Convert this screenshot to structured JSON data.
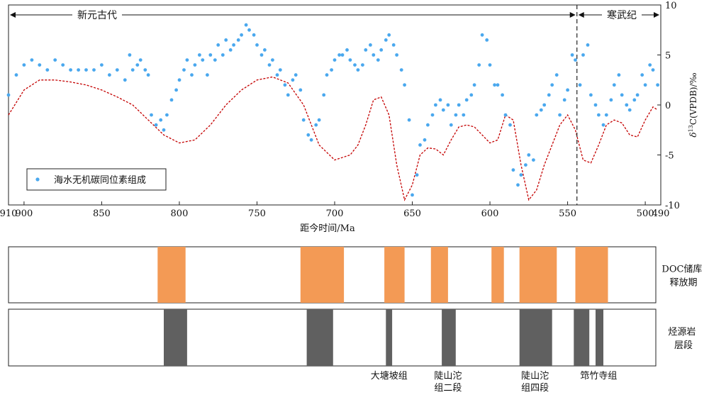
{
  "chart_data": [
    {
      "type": "scatter",
      "title": "",
      "xlabel": "距今时间/Ma",
      "ylabel": "δ13C(VPDB)/‰",
      "ylabel_parts": {
        "delta": "δ",
        "sup": "13",
        "rest": "C(VPDB)/‰"
      },
      "xlim": [
        910,
        490
      ],
      "ylim": [
        -10,
        10
      ],
      "x_reversed": true,
      "xticks": [
        910,
        900,
        850,
        800,
        750,
        700,
        650,
        600,
        550,
        500,
        490
      ],
      "yticks": [
        10,
        5,
        0,
        -5,
        -10
      ],
      "boundary_ma": 544,
      "era_labels": {
        "left": "新元古代",
        "right": "寒武纪"
      },
      "legend": {
        "label": "海水无机碳同位素组成",
        "position": "bottom-left"
      },
      "colors": {
        "points": "#4aa8ee",
        "trend": "#c40000",
        "boundary": "#333333"
      },
      "series": [
        {
          "name": "海水无机碳同位素组成",
          "kind": "points",
          "x": [
            910,
            905,
            900,
            895,
            890,
            885,
            880,
            875,
            870,
            865,
            860,
            855,
            850,
            845,
            840,
            835,
            832,
            830,
            827,
            825,
            822,
            820,
            818,
            815,
            812,
            810,
            808,
            805,
            802,
            800,
            797,
            795,
            792,
            790,
            787,
            785,
            782,
            780,
            777,
            775,
            772,
            770,
            767,
            765,
            762,
            760,
            757,
            755,
            752,
            750,
            747,
            745,
            742,
            740,
            737,
            735,
            732,
            730,
            727,
            725,
            722,
            720,
            717,
            715,
            712,
            710,
            707,
            705,
            702,
            700,
            697,
            695,
            692,
            690,
            687,
            685,
            682,
            680,
            677,
            675,
            672,
            670,
            667,
            665,
            662,
            660,
            657,
            655,
            652,
            650,
            647,
            645,
            642,
            640,
            637,
            635,
            632,
            630,
            627,
            625,
            622,
            620,
            617,
            615,
            612,
            610,
            607,
            605,
            602,
            600,
            597,
            595,
            592,
            590,
            587,
            585,
            582,
            580,
            577,
            575,
            572,
            570,
            567,
            565,
            562,
            560,
            557,
            555,
            552,
            550,
            547,
            545,
            542,
            540,
            537,
            535,
            532,
            530,
            527,
            525,
            522,
            520,
            517,
            515,
            512,
            510,
            507,
            505,
            502,
            500,
            497,
            495,
            492
          ],
          "y": [
            1,
            3,
            4,
            4.5,
            4,
            3.5,
            4.5,
            4,
            3.5,
            3.5,
            3.5,
            3.5,
            4,
            3,
            3.5,
            2.5,
            5,
            3.5,
            4,
            4.5,
            3.5,
            3,
            -1,
            -2,
            -1.5,
            -2.5,
            -1,
            0.5,
            1.5,
            2.5,
            3.5,
            4.5,
            3,
            4,
            5,
            4.5,
            3,
            5,
            4.5,
            6,
            5,
            6.5,
            5.5,
            6,
            6.5,
            7,
            8,
            7.5,
            7,
            6,
            5,
            5.5,
            4,
            4.5,
            3,
            3.5,
            2,
            1,
            2.5,
            3,
            1.5,
            -1.5,
            -3,
            -3.5,
            -2,
            -1.5,
            1,
            3,
            3.5,
            4.5,
            5,
            5,
            5.5,
            4.5,
            4,
            3.5,
            4,
            5.5,
            6,
            5,
            4.5,
            5.5,
            6.5,
            7,
            6,
            5,
            3.5,
            2,
            -1.5,
            -9,
            -7,
            -4,
            -3.5,
            -2,
            -1,
            0,
            0.5,
            -0.5,
            0,
            -2,
            -1,
            0,
            -1,
            0.5,
            1,
            2,
            4,
            7,
            6.5,
            4,
            2,
            2,
            1,
            -1,
            -2,
            -6.5,
            -8,
            -7,
            -6,
            -5,
            -5.5,
            -1,
            -0.5,
            0,
            1,
            2,
            3,
            -1,
            0.5,
            1.5,
            5,
            4.5,
            2,
            5,
            6,
            1,
            0,
            -1,
            -2,
            -1,
            0.5,
            2,
            3,
            1,
            0,
            -0.5,
            0.5,
            1,
            3,
            2,
            4,
            3.5,
            2
          ]
        },
        {
          "name": "",
          "kind": "trend",
          "x": [
            910,
            900,
            890,
            880,
            870,
            860,
            850,
            840,
            830,
            820,
            810,
            800,
            790,
            780,
            770,
            760,
            750,
            740,
            730,
            720,
            710,
            700,
            690,
            685,
            680,
            675,
            670,
            665,
            660,
            655,
            650,
            645,
            640,
            635,
            630,
            625,
            620,
            615,
            610,
            605,
            600,
            595,
            590,
            585,
            580,
            575,
            570,
            565,
            560,
            555,
            550,
            545,
            540,
            535,
            530,
            525,
            520,
            515,
            510,
            505,
            500,
            495,
            492
          ],
          "y": [
            -1,
            1.5,
            2.5,
            2.5,
            2.3,
            2,
            1.5,
            0.8,
            0,
            -1.5,
            -3,
            -3.8,
            -3.5,
            -2,
            0,
            1.5,
            2.5,
            2.8,
            2.2,
            0,
            -4,
            -5.5,
            -5,
            -4,
            -2,
            0.5,
            0.8,
            -1,
            -6,
            -9.5,
            -8,
            -5,
            -4.3,
            -4.4,
            -5,
            -3.5,
            -2.2,
            -2,
            -2.2,
            -3,
            -3.8,
            -3.5,
            -1,
            -1.5,
            -6,
            -9.5,
            -8.5,
            -6,
            -4,
            -2,
            -1,
            -2.5,
            -5.5,
            -5.8,
            -4,
            -2,
            -1.5,
            -1.8,
            -3,
            -3.2,
            -1.5,
            -0.2,
            -0.5
          ]
        }
      ]
    },
    {
      "type": "interval-bands",
      "rows": [
        {
          "label": "DOC储库释放期",
          "label_lines": [
            "DOC储库",
            "释放期"
          ],
          "color": "#f39a55",
          "intervals_ma": [
            [
              814,
              796
            ],
            [
              722,
              694
            ],
            [
              668,
              655
            ],
            [
              638,
              627
            ],
            [
              599,
              591
            ],
            [
              581,
              557
            ],
            [
              545,
              524
            ]
          ]
        },
        {
          "label": "烃源岩层段",
          "label_lines": [
            "烃源岩",
            "层段"
          ],
          "color": "#606060",
          "intervals_ma": [
            [
              810,
              795
            ],
            [
              718,
              701
            ],
            [
              667,
              663
            ],
            [
              631,
              622
            ],
            [
              581,
              560
            ],
            [
              546,
              536
            ],
            [
              532,
              527
            ]
          ]
        }
      ],
      "unit_labels": [
        {
          "lines": [
            "大塘坡组"
          ],
          "ma": 665
        },
        {
          "lines": [
            "陡山沱",
            "组二段"
          ],
          "ma": 627
        },
        {
          "lines": [
            "陡山沱",
            "组四段"
          ],
          "ma": 571
        },
        {
          "lines": [
            "筇竹寺组"
          ],
          "ma": 530
        }
      ]
    }
  ]
}
